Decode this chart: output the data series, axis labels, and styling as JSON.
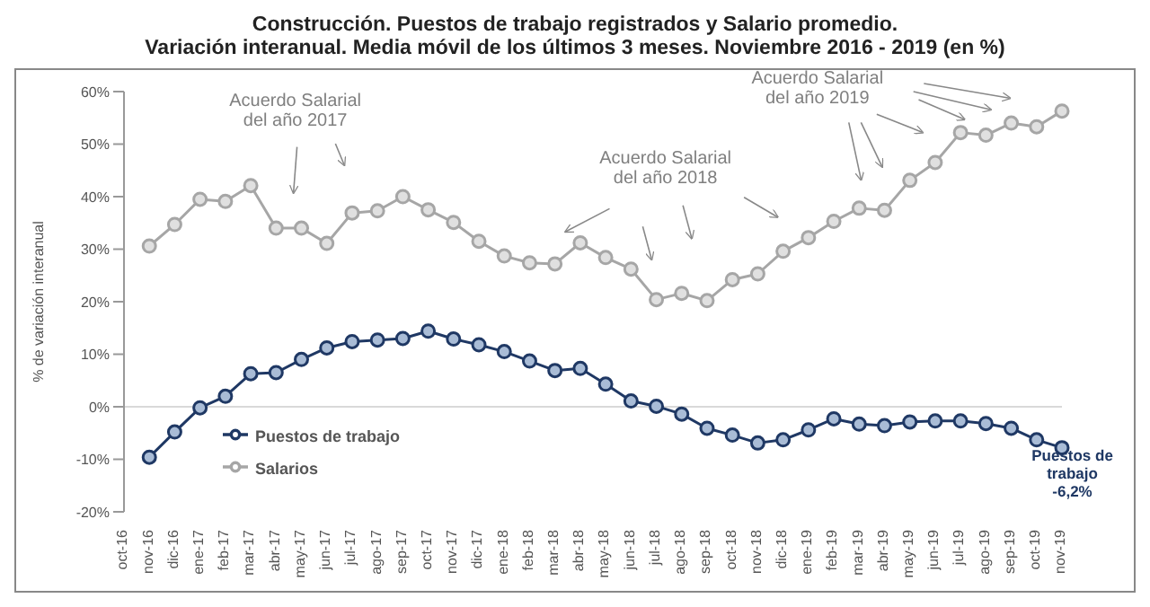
{
  "chart_data": {
    "type": "line",
    "title": "Construcción. Puestos de trabajo registrados y Salario promedio.",
    "subtitle": "Variación interanual. Media móvil de los últimos 3 meses. Noviembre 2016 - 2019 (en %)",
    "ylabel": "% de variación interanual",
    "categories": [
      "oct-16",
      "nov-16",
      "dic-16",
      "ene-17",
      "feb-17",
      "mar-17",
      "abr-17",
      "may-17",
      "jun-17",
      "jul-17",
      "ago-17",
      "sep-17",
      "oct-17",
      "nov-17",
      "dic-17",
      "ene-18",
      "feb-18",
      "mar-18",
      "abr-18",
      "may-18",
      "jun-18",
      "jul-18",
      "ago-18",
      "sep-18",
      "oct-18",
      "nov-18",
      "dic-18",
      "ene-19",
      "feb-19",
      "mar-19",
      "abr-19",
      "may-19",
      "jun-19",
      "jul-19",
      "ago-19",
      "sep-19",
      "oct-19",
      "nov-19"
    ],
    "series": [
      {
        "name": "Puestos de trabajo",
        "color": "#1f3864",
        "values": [
          null,
          -9.6,
          -4.8,
          -0.2,
          2.0,
          6.3,
          6.5,
          9.0,
          11.2,
          12.4,
          12.7,
          13.0,
          14.4,
          12.9,
          11.8,
          10.5,
          8.7,
          6.9,
          7.3,
          4.3,
          1.1,
          0.1,
          -1.4,
          -4.1,
          -5.4,
          -6.9,
          -6.3,
          -4.4,
          -2.3,
          -3.3,
          -3.6,
          -2.9,
          -2.7,
          -2.7,
          -3.2,
          -4.1,
          -6.3,
          -7.8
        ]
      },
      {
        "name": "Salarios",
        "color": "#a6a6a6",
        "values": [
          null,
          30.6,
          34.7,
          39.5,
          39.1,
          42.1,
          34.0,
          34.0,
          31.1,
          36.9,
          37.3,
          40.0,
          37.5,
          35.1,
          31.5,
          28.7,
          27.4,
          27.2,
          31.2,
          28.4,
          26.2,
          20.4,
          21.6,
          20.2,
          24.2,
          25.3,
          29.6,
          32.2,
          35.3,
          37.8,
          37.4,
          43.1,
          46.5,
          52.2,
          51.7,
          54.0,
          53.3,
          56.3
        ]
      }
    ],
    "ylim": [
      -20,
      60
    ],
    "yticks": [
      {
        "value": -20,
        "label": "-20%"
      },
      {
        "value": -10,
        "label": "-10%"
      },
      {
        "value": 0,
        "label": "0%"
      },
      {
        "value": 10,
        "label": "10%"
      },
      {
        "value": 20,
        "label": "20%"
      },
      {
        "value": 30,
        "label": "30%"
      },
      {
        "value": 40,
        "label": "40%"
      },
      {
        "value": 50,
        "label": "50%"
      },
      {
        "value": 60,
        "label": "60%"
      }
    ],
    "ref_lines": [
      {
        "axis": "y",
        "value": 0,
        "color": "#d9d9d9"
      }
    ],
    "annotations": [
      "Acuerdo Salarial\ndel año 2017",
      "Acuerdo Salarial\ndel año 2018",
      "Acuerdo Salarial\ndel año 2019",
      "Puestos de\ntrabajo\n-6,2%"
    ],
    "marker": "circle",
    "legend": "bottom left",
    "grid": false
  }
}
